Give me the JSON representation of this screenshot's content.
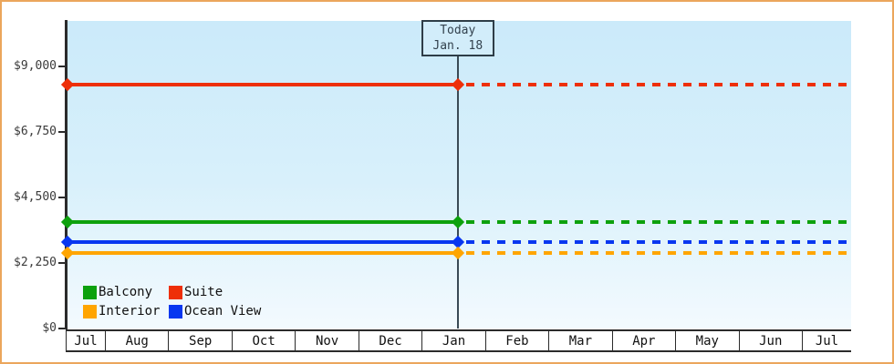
{
  "chart_data": {
    "type": "line",
    "description": "Cruise cabin price tracker: price by cabin category over time, solid history up to today then dashed projection",
    "x_axis": {
      "months": [
        "Jul",
        "Aug",
        "Sep",
        "Oct",
        "Nov",
        "Dec",
        "Jan",
        "Feb",
        "Mar",
        "Apr",
        "May",
        "Jun",
        "Jul"
      ]
    },
    "y_axis": {
      "min": 0,
      "max": 9000,
      "ticks": [
        {
          "value": 9000,
          "label": "$9,000"
        },
        {
          "value": 6750,
          "label": "$6,750"
        },
        {
          "value": 4500,
          "label": "$4,500"
        },
        {
          "value": 2250,
          "label": "$2,250"
        },
        {
          "value": 0,
          "label": "$0"
        }
      ]
    },
    "today_marker": {
      "line1": "Today",
      "line2": "Jan. 18",
      "x_fraction": 0.498
    },
    "series": [
      {
        "name": "Suite",
        "color": "#ee2f08",
        "value": 8375
      },
      {
        "name": "Balcony",
        "color": "#0da10d",
        "value": 3650
      },
      {
        "name": "Ocean View",
        "color": "#0837f0",
        "value": 2980
      },
      {
        "name": "Interior",
        "color": "#ffa500",
        "value": 2600
      }
    ],
    "legend": {
      "position": "bottom-left",
      "rows": [
        [
          "Balcony",
          "Suite"
        ],
        [
          "Interior",
          "Ocean View"
        ]
      ]
    },
    "line_style": "solid with diamond markers before today, dashed after today"
  },
  "frame": {
    "border_color": "#eba65c",
    "plot_bg_top": "#cbeafa",
    "plot_bg_bottom": "#f3fafe"
  }
}
